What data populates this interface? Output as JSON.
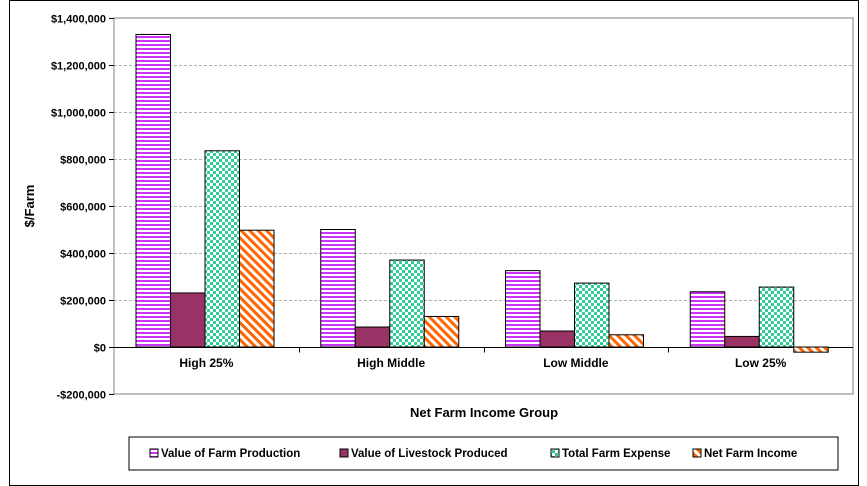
{
  "chart_data": {
    "type": "bar",
    "categories": [
      "High 25%",
      "High Middle",
      "Low Middle",
      "Low 25%"
    ],
    "series": [
      {
        "name": "Value of Farm Production",
        "values": [
          1330000,
          500000,
          325000,
          235000
        ]
      },
      {
        "name": "Value of Livestock Produced",
        "values": [
          230000,
          85000,
          68000,
          45000
        ]
      },
      {
        "name": "Total Farm Expense",
        "values": [
          835000,
          370000,
          272000,
          255000
        ]
      },
      {
        "name": "Net Farm Income",
        "values": [
          497000,
          130000,
          52000,
          -22000
        ]
      }
    ],
    "title": "",
    "xlabel": "Net Farm Income Group",
    "ylabel": "$/Farm",
    "ylim": [
      -200000,
      1400000
    ],
    "yticks": [
      -200000,
      0,
      200000,
      400000,
      600000,
      800000,
      1000000,
      1200000,
      1400000
    ],
    "ytick_labels": [
      "-$200,000",
      "$0",
      "$200,000",
      "$400,000",
      "$600,000",
      "$800,000",
      "$1,000,000",
      "$1,200,000",
      "$1,400,000"
    ],
    "grid": true,
    "legend_position": "bottom",
    "colors": {
      "farm_production": "#cc33ff",
      "livestock": "#993366",
      "farm_expense": "#33cc99",
      "net_income": "#ff6600"
    }
  }
}
